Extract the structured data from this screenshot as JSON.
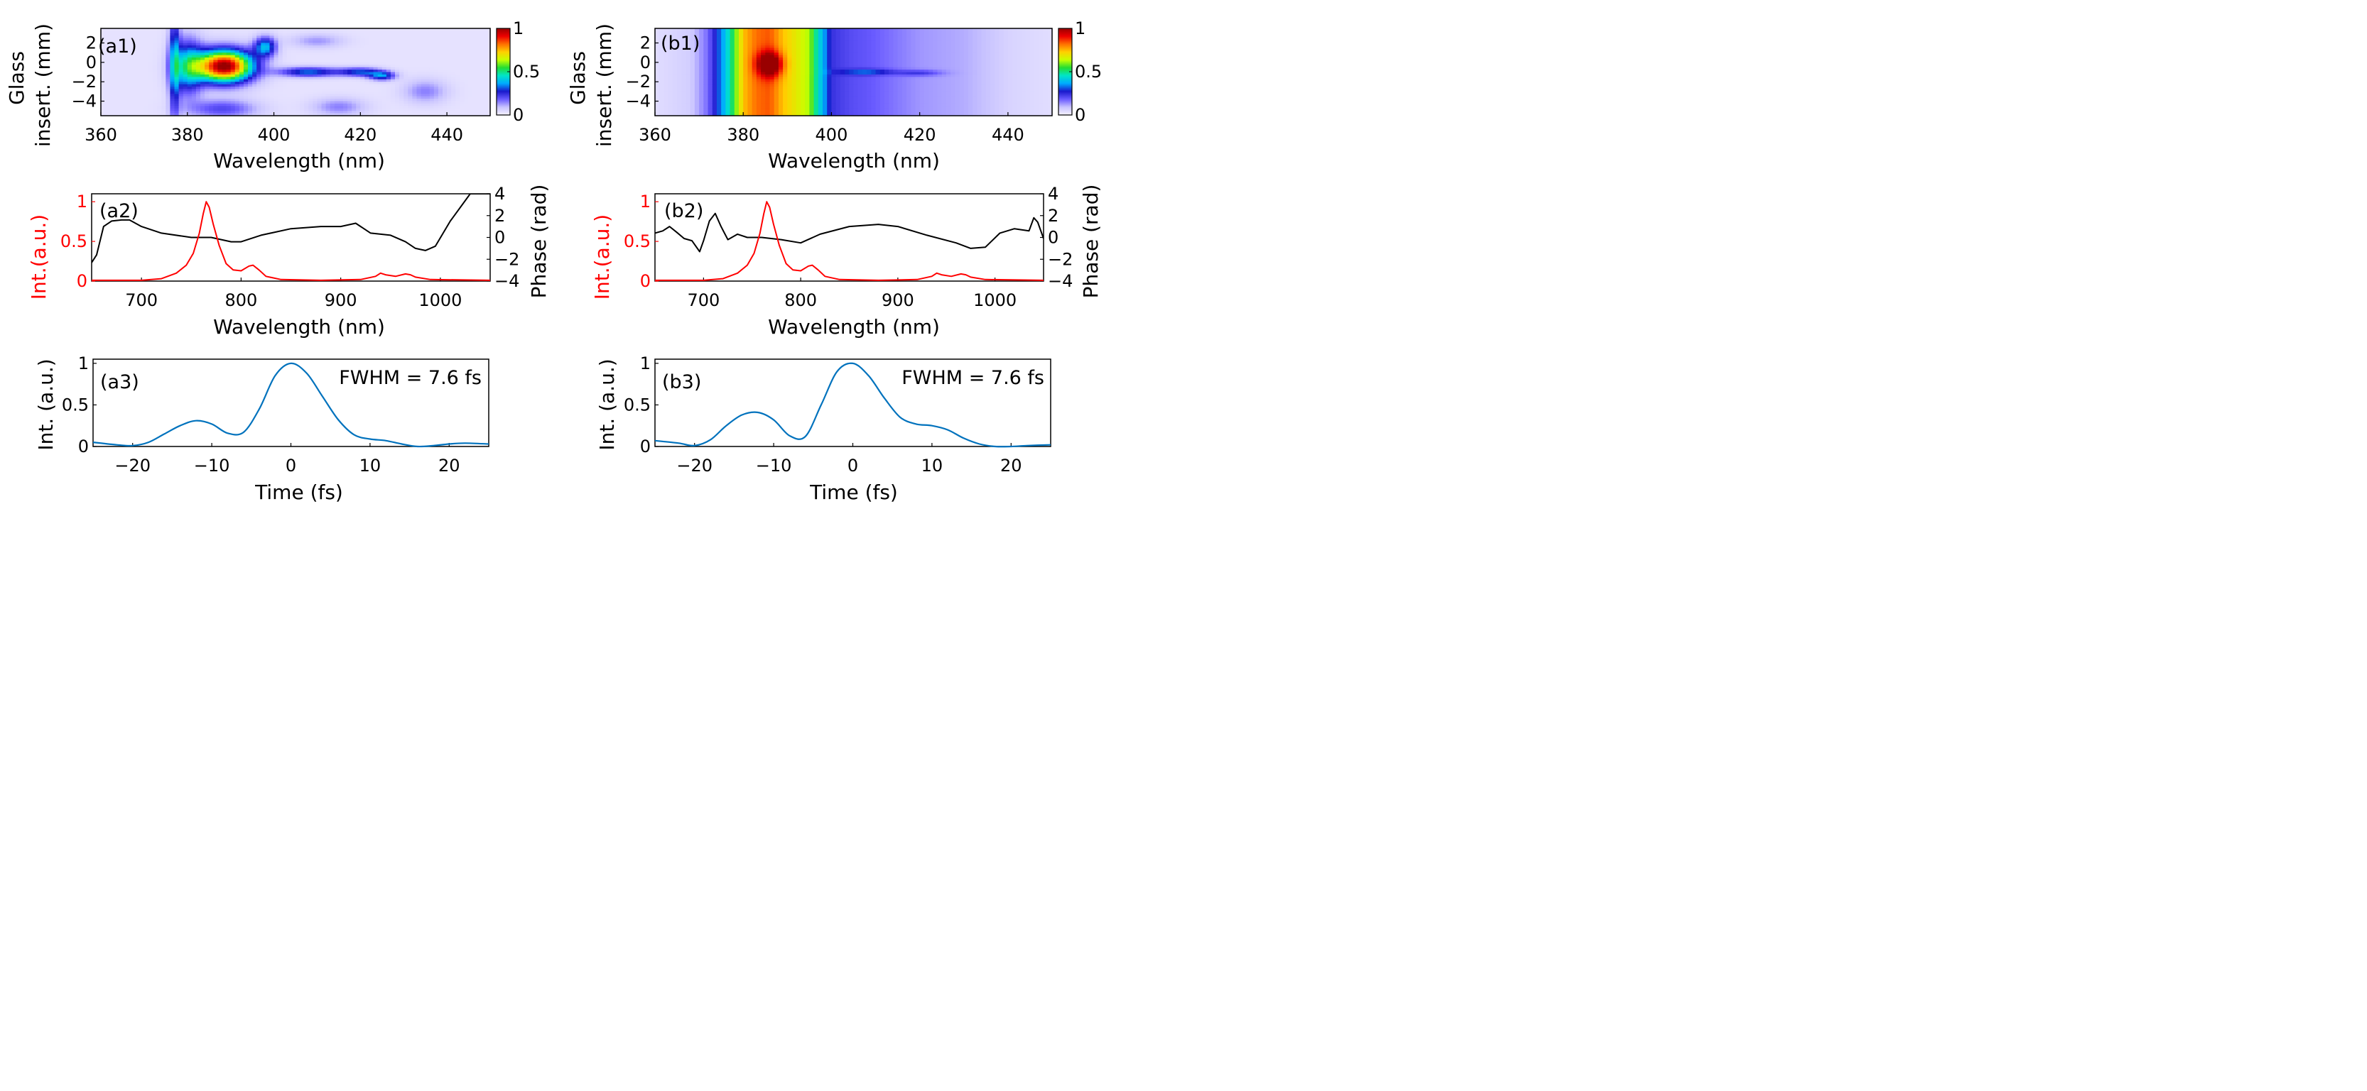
{
  "colors": {
    "intensity": "#ff0000",
    "phase": "#000000",
    "time_trace": "#0072bd",
    "colormap": [
      "#f5f2ff",
      "#c8c3ff",
      "#6a5bff",
      "#1a1acc",
      "#00aaff",
      "#00e5c8",
      "#22dd33",
      "#c8ff00",
      "#ffd000",
      "#ff7000",
      "#ee0000",
      "#990000"
    ]
  },
  "chart_data": [
    {
      "id": "a1",
      "type": "heatmap",
      "panel_label": "(a1)",
      "xlabel": "Wavelength (nm)",
      "ylabel_line1": "Glass",
      "ylabel_line2": "insert. (mm)",
      "xlim": [
        360,
        450
      ],
      "ylim": [
        -5.5,
        3.5
      ],
      "xticks": [
        360,
        380,
        400,
        420,
        440
      ],
      "yticks": [
        2,
        0,
        -2,
        -4
      ],
      "ytick_labels": [
        "2",
        "0",
        "−2",
        "−4"
      ],
      "colorbar": {
        "min": 0,
        "max": 1,
        "ticks": [
          1,
          0.5,
          0
        ],
        "tick_labels": [
          "1",
          "0.5",
          "0"
        ]
      },
      "background_level": 0.03,
      "blobs": [
        {
          "x0": 388.5,
          "y0": -0.4,
          "sx": 6.5,
          "sy": 1.6,
          "amp": 1.0
        },
        {
          "x0": 380.0,
          "y0": -0.5,
          "sx": 3.5,
          "sy": 2.8,
          "amp": 0.35
        },
        {
          "x0": 398.0,
          "y0": 1.6,
          "sx": 2.5,
          "sy": 1.0,
          "amp": 0.35
        },
        {
          "x0": 408.0,
          "y0": -1.0,
          "sx": 7.0,
          "sy": 0.5,
          "amp": 0.3
        },
        {
          "x0": 420.0,
          "y0": -1.0,
          "sx": 5.0,
          "sy": 0.45,
          "amp": 0.27
        },
        {
          "x0": 425.0,
          "y0": -1.4,
          "sx": 3.0,
          "sy": 0.45,
          "amp": 0.3
        },
        {
          "x0": 377.0,
          "y0": 0.0,
          "sx": 1.2,
          "sy": 6.0,
          "amp": 0.28
        },
        {
          "x0": 388.0,
          "y0": -4.8,
          "sx": 8.0,
          "sy": 1.0,
          "amp": 0.18
        },
        {
          "x0": 410.0,
          "y0": 2.2,
          "sx": 6.0,
          "sy": 0.7,
          "amp": 0.1
        },
        {
          "x0": 415.0,
          "y0": -4.6,
          "sx": 6.0,
          "sy": 0.9,
          "amp": 0.12
        },
        {
          "x0": 435.0,
          "y0": -3.0,
          "sx": 5.0,
          "sy": 1.2,
          "amp": 0.12
        }
      ]
    },
    {
      "id": "b1",
      "type": "heatmap",
      "panel_label": "(b1)",
      "xlabel": "Wavelength (nm)",
      "ylabel_line1": "Glass",
      "ylabel_line2": "insert. (mm)",
      "xlim": [
        360,
        450
      ],
      "ylim": [
        -5.5,
        3.5
      ],
      "xticks": [
        360,
        380,
        400,
        420,
        440
      ],
      "yticks": [
        2,
        0,
        -2,
        -4
      ],
      "ytick_labels": [
        "2",
        "0",
        "−2",
        "−4"
      ],
      "colorbar": {
        "min": 0,
        "max": 1,
        "ticks": [
          1,
          0.5,
          0
        ],
        "tick_labels": [
          "1",
          "0.5",
          "0"
        ]
      },
      "background_level": 0.02,
      "spectral_profile": {
        "x": [
          360,
          368,
          372,
          375,
          377,
          380,
          383,
          386,
          389,
          392,
          395,
          397,
          399,
          400,
          402,
          405,
          408,
          412,
          416,
          420,
          425,
          430,
          435,
          440,
          445,
          450
        ],
        "v": [
          0.02,
          0.05,
          0.15,
          0.32,
          0.45,
          0.72,
          0.8,
          0.82,
          0.72,
          0.66,
          0.6,
          0.42,
          0.3,
          0.22,
          0.2,
          0.18,
          0.17,
          0.15,
          0.13,
          0.11,
          0.1,
          0.09,
          0.07,
          0.04,
          0.03,
          0.02
        ]
      },
      "blobs": [
        {
          "x0": 386.0,
          "y0": -0.2,
          "sx": 2.8,
          "sy": 1.2,
          "amp": 0.35
        },
        {
          "x0": 408.0,
          "y0": -1.0,
          "sx": 6.0,
          "sy": 0.3,
          "amp": 0.15
        },
        {
          "x0": 420.0,
          "y0": -1.1,
          "sx": 5.0,
          "sy": 0.3,
          "amp": 0.1
        }
      ]
    },
    {
      "id": "a2",
      "type": "line",
      "panel_label": "(a2)",
      "xlabel": "Wavelength (nm)",
      "ylabel_left": "Int.(a.u.)",
      "ylabel_right": "Phase (rad)",
      "xlim": [
        650,
        1050
      ],
      "ylim_left": [
        0,
        1.1
      ],
      "ylim_right": [
        -4,
        4
      ],
      "xticks": [
        700,
        800,
        900,
        1000
      ],
      "yticks_left": [
        0,
        0.5,
        1
      ],
      "ytick_labels_left": [
        "0",
        "0.5",
        "1"
      ],
      "yticks_right": [
        4,
        2,
        0,
        -2,
        -4
      ],
      "ytick_labels_right": [
        "4",
        "2",
        "0",
        "−2",
        "−4"
      ],
      "intensity": {
        "x": [
          650,
          700,
          720,
          735,
          745,
          752,
          758,
          762,
          765,
          768,
          772,
          778,
          785,
          792,
          800,
          808,
          812,
          818,
          825,
          840,
          880,
          920,
          935,
          940,
          945,
          955,
          965,
          970,
          975,
          990,
          1050
        ],
        "y": [
          0.01,
          0.01,
          0.03,
          0.1,
          0.2,
          0.35,
          0.6,
          0.85,
          1.0,
          0.93,
          0.72,
          0.45,
          0.22,
          0.14,
          0.13,
          0.19,
          0.2,
          0.14,
          0.06,
          0.02,
          0.01,
          0.02,
          0.06,
          0.1,
          0.08,
          0.06,
          0.09,
          0.08,
          0.05,
          0.02,
          0.01
        ]
      },
      "phase": {
        "x": [
          650,
          655,
          662,
          670,
          680,
          688,
          700,
          720,
          750,
          770,
          790,
          800,
          820,
          850,
          880,
          900,
          915,
          930,
          950,
          965,
          975,
          985,
          995,
          1010,
          1030,
          1050
        ],
        "y": [
          -2.3,
          -1.6,
          1.0,
          1.5,
          1.6,
          1.6,
          1.0,
          0.4,
          0.0,
          0.0,
          -0.4,
          -0.4,
          0.2,
          0.8,
          1.0,
          1.0,
          1.3,
          0.4,
          0.2,
          -0.4,
          -1.0,
          -1.2,
          -0.8,
          1.5,
          4.0,
          4.0
        ]
      }
    },
    {
      "id": "b2",
      "type": "line",
      "panel_label": "(b2)",
      "xlabel": "Wavelength (nm)",
      "ylabel_left": "Int.(a.u.)",
      "ylabel_right": "Phase (rad)",
      "xlim": [
        650,
        1050
      ],
      "ylim_left": [
        0,
        1.1
      ],
      "ylim_right": [
        -4,
        4
      ],
      "xticks": [
        700,
        800,
        900,
        1000
      ],
      "yticks_left": [
        0,
        0.5,
        1
      ],
      "ytick_labels_left": [
        "0",
        "0.5",
        "1"
      ],
      "yticks_right": [
        4,
        2,
        0,
        -2,
        -4
      ],
      "ytick_labels_right": [
        "4",
        "2",
        "0",
        "−2",
        "−4"
      ],
      "intensity": {
        "x": [
          650,
          700,
          720,
          735,
          745,
          752,
          758,
          762,
          765,
          768,
          772,
          778,
          785,
          792,
          800,
          808,
          812,
          818,
          825,
          840,
          880,
          920,
          935,
          940,
          945,
          955,
          965,
          970,
          975,
          990,
          1050
        ],
        "y": [
          0.01,
          0.01,
          0.03,
          0.1,
          0.2,
          0.35,
          0.6,
          0.85,
          1.0,
          0.93,
          0.72,
          0.45,
          0.22,
          0.14,
          0.13,
          0.19,
          0.2,
          0.14,
          0.06,
          0.02,
          0.01,
          0.02,
          0.06,
          0.1,
          0.08,
          0.06,
          0.09,
          0.08,
          0.05,
          0.02,
          0.01
        ]
      },
      "phase": {
        "x": [
          650,
          658,
          665,
          672,
          680,
          688,
          696,
          700,
          706,
          712,
          718,
          725,
          735,
          745,
          760,
          780,
          800,
          820,
          850,
          880,
          900,
          930,
          960,
          975,
          990,
          1005,
          1020,
          1035,
          1040,
          1044,
          1050
        ],
        "y": [
          0.4,
          0.6,
          1.0,
          0.5,
          -0.1,
          -0.3,
          -1.3,
          -0.3,
          1.5,
          2.2,
          1.0,
          -0.2,
          0.3,
          0.0,
          0.0,
          -0.2,
          -0.5,
          0.3,
          1.0,
          1.2,
          1.0,
          0.2,
          -0.5,
          -1.0,
          -0.9,
          0.4,
          0.8,
          0.6,
          1.8,
          1.4,
          -0.1
        ]
      }
    },
    {
      "id": "a3",
      "type": "line",
      "panel_label": "(a3)",
      "annotation": "FWHM = 7.6 fs",
      "xlabel": "Time (fs)",
      "ylabel": "Int. (a.u.)",
      "xlim": [
        -25,
        25
      ],
      "ylim": [
        0,
        1.05
      ],
      "xticks": [
        -20,
        -10,
        0,
        10,
        20
      ],
      "xtick_labels": [
        "−20",
        "−10",
        "0",
        "10",
        "20"
      ],
      "yticks": [
        0,
        0.5,
        1
      ],
      "ytick_labels": [
        "0",
        "0.5",
        "1"
      ],
      "x": [
        -25,
        -22,
        -20,
        -18,
        -16,
        -14,
        -12,
        -10,
        -8,
        -6,
        -4,
        -2,
        0,
        2,
        4,
        6,
        8,
        10,
        12,
        14,
        16,
        18,
        20,
        22,
        25
      ],
      "y": [
        0.05,
        0.02,
        0.01,
        0.05,
        0.15,
        0.25,
        0.31,
        0.27,
        0.16,
        0.17,
        0.45,
        0.85,
        1.0,
        0.88,
        0.6,
        0.32,
        0.14,
        0.09,
        0.07,
        0.03,
        0.0,
        0.01,
        0.03,
        0.04,
        0.03
      ]
    },
    {
      "id": "b3",
      "type": "line",
      "panel_label": "(b3)",
      "annotation": "FWHM = 7.6 fs",
      "xlabel": "Time (fs)",
      "ylabel": "Int. (a.u.)",
      "xlim": [
        -25,
        25
      ],
      "ylim": [
        0,
        1.05
      ],
      "xticks": [
        -20,
        -10,
        0,
        10,
        20
      ],
      "xtick_labels": [
        "−20",
        "−10",
        "0",
        "10",
        "20"
      ],
      "yticks": [
        0,
        0.5,
        1
      ],
      "ytick_labels": [
        "0",
        "0.5",
        "1"
      ],
      "x": [
        -25,
        -22,
        -20,
        -18,
        -16,
        -14,
        -12,
        -10,
        -8,
        -6,
        -4,
        -2,
        0,
        2,
        4,
        6,
        8,
        10,
        12,
        14,
        16,
        18,
        20,
        22,
        25
      ],
      "y": [
        0.07,
        0.04,
        0.01,
        0.08,
        0.25,
        0.38,
        0.41,
        0.32,
        0.13,
        0.12,
        0.5,
        0.9,
        1.0,
        0.85,
        0.58,
        0.35,
        0.27,
        0.25,
        0.2,
        0.1,
        0.03,
        0.0,
        0.0,
        0.01,
        0.02
      ]
    }
  ]
}
